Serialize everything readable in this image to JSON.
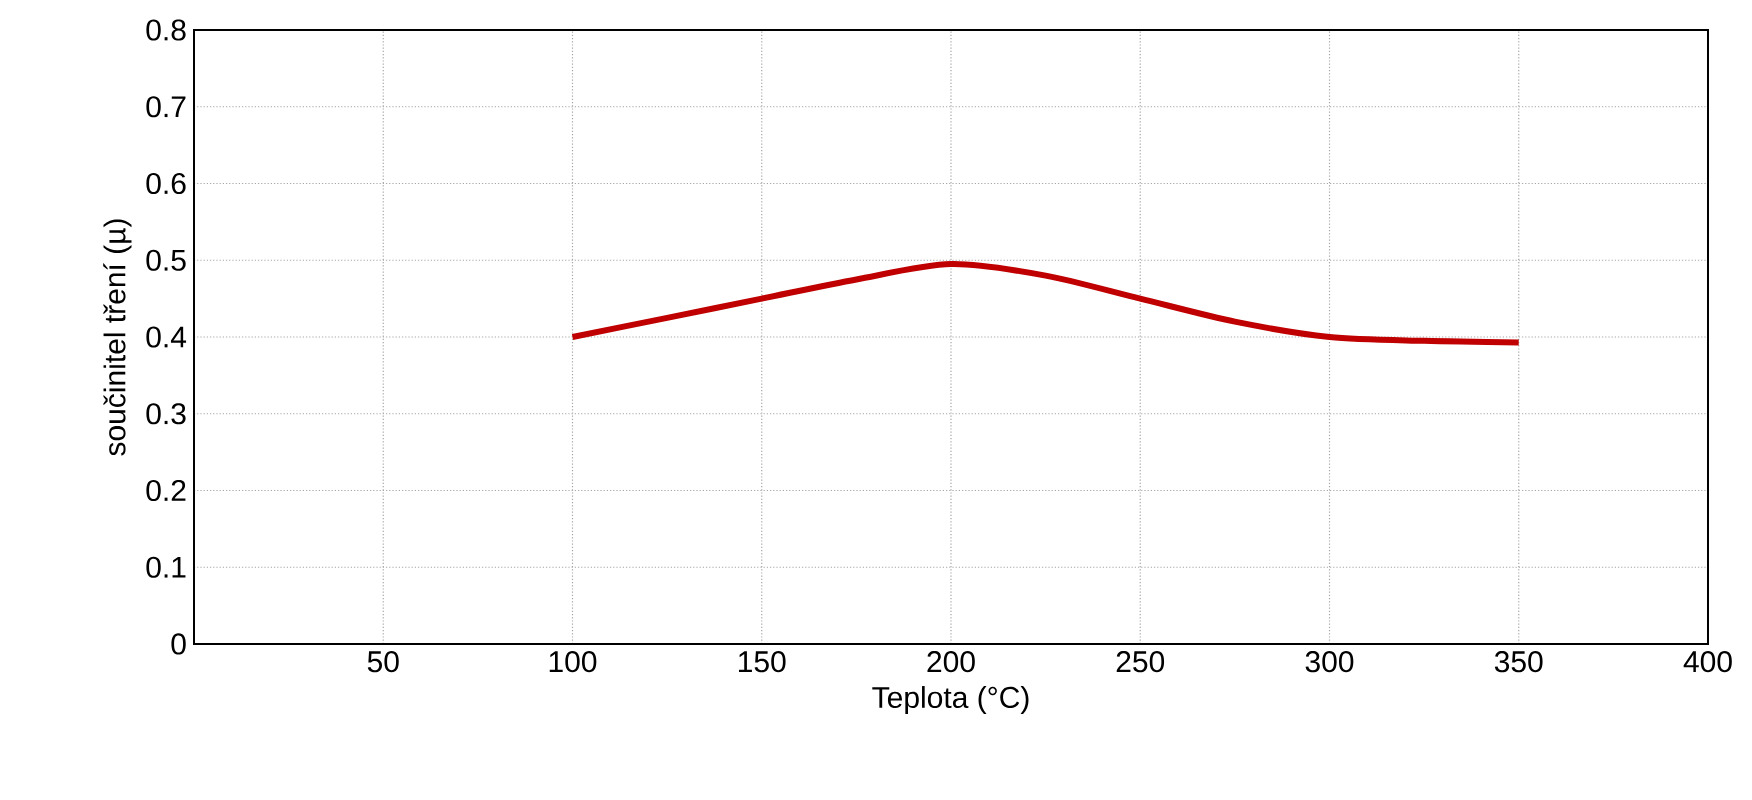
{
  "chart_data": {
    "type": "line",
    "xlabel": "Teplota (°C)",
    "ylabel": "součinitel tření (µ)",
    "x": [
      100,
      125,
      150,
      175,
      200,
      225,
      250,
      275,
      300,
      325,
      350
    ],
    "series": [
      {
        "color": "#c00000",
        "values": [
          0.4,
          0.425,
          0.45,
          0.475,
          0.495,
          0.48,
          0.45,
          0.42,
          0.4,
          0.395,
          0.393
        ]
      }
    ],
    "xlim": [
      0,
      400
    ],
    "xticks": [
      50,
      100,
      150,
      200,
      250,
      300,
      350,
      400
    ],
    "ylim": [
      0,
      0.8
    ],
    "yticks": [
      0,
      0.1,
      0.2,
      0.3,
      0.4,
      0.5,
      0.6,
      0.7,
      0.8
    ],
    "grid": true,
    "marker": "none",
    "line_style": "solid"
  }
}
